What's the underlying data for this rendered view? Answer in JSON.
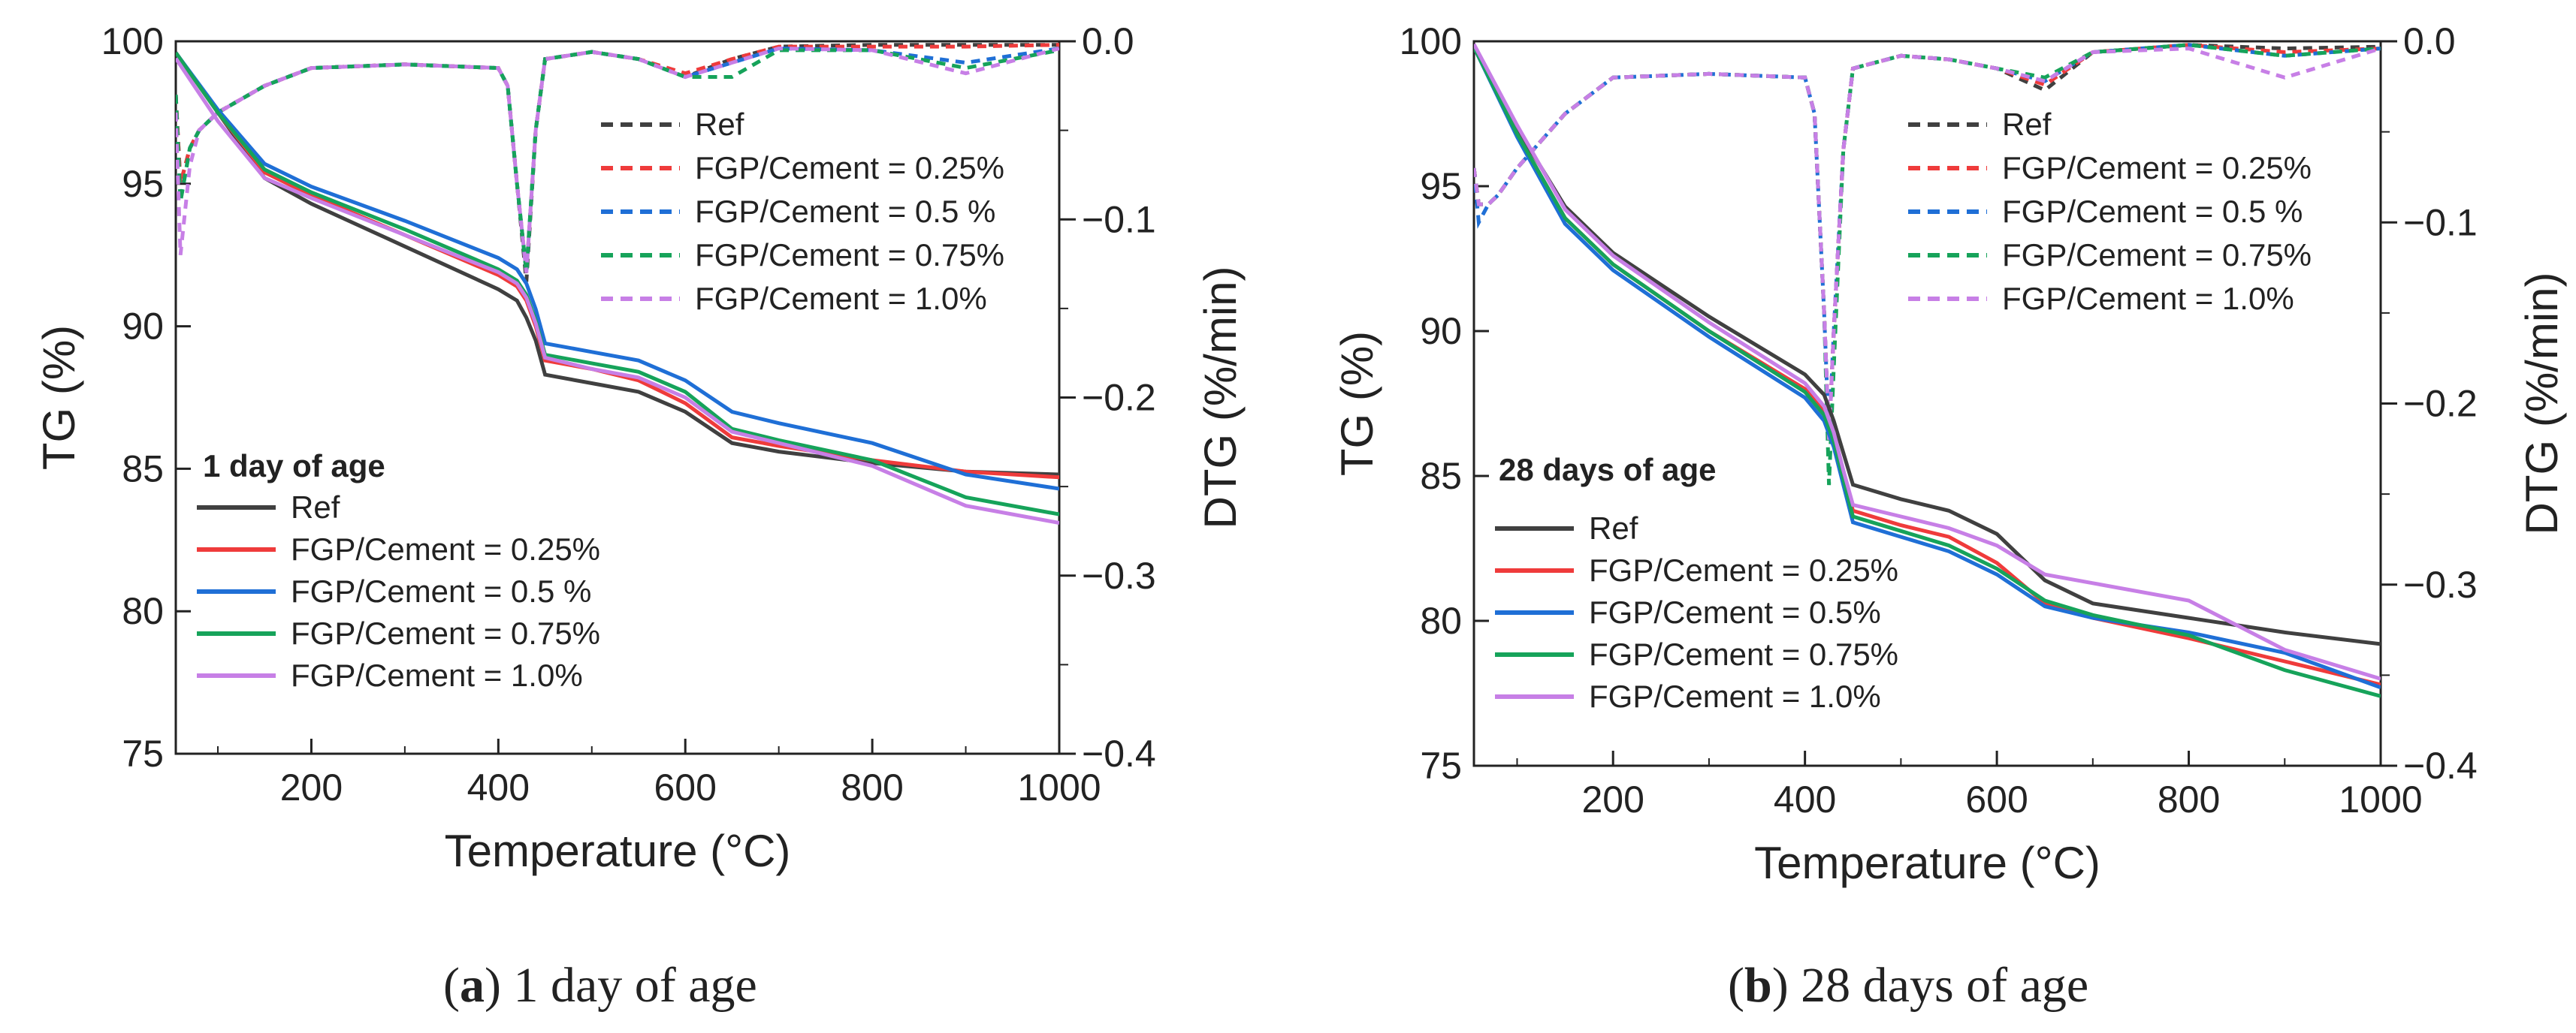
{
  "figure": {
    "captions": [
      {
        "prefix": "(",
        "letter": "a",
        "suffix": ") 1 day of age"
      },
      {
        "prefix": "(",
        "letter": "b",
        "suffix": ") 28 days of age"
      }
    ]
  },
  "colors": {
    "Ref": "#404040",
    "FGP025": "#ef3b3b",
    "FGP05": "#1f6fd6",
    "FGP075": "#16a35a",
    "FGP10": "#c77fe6"
  },
  "chart_data": [
    {
      "type": "line",
      "title": "1 day of age",
      "xlabel": "Temperature (°C)",
      "ylabel": "TG (%)",
      "y2label": "DTG (%/min)",
      "xlim": [
        55,
        1000
      ],
      "ylim": [
        75,
        100
      ],
      "y2lim": [
        -0.4,
        0.0
      ],
      "xticks": [
        "200",
        "400",
        "600",
        "800",
        "1000"
      ],
      "yticks": [
        "75",
        "80",
        "85",
        "90",
        "95",
        "100"
      ],
      "y2ticks": [
        "−0.4",
        "−0.3",
        "−0.2",
        "−0.1",
        "0.0"
      ],
      "condition_label": "1 day of age",
      "tg_legend": [
        "Ref",
        "FGP/Cement = 0.25%",
        "FGP/Cement  = 0.5 %",
        "FGP/Cement = 0.75%",
        "FGP/Cement = 1.0%"
      ],
      "dtg_legend": [
        "Ref",
        "FGP/Cement = 0.25%",
        "FGP/Cement  = 0.5 %",
        "FGP/Cement = 0.75%",
        "FGP/Cement = 1.0%"
      ],
      "series_keys": [
        "Ref",
        "FGP025",
        "FGP05",
        "FGP075",
        "FGP10"
      ],
      "tg_series": [
        {
          "name": "Ref",
          "x": [
            55,
            100,
            150,
            200,
            300,
            400,
            420,
            430,
            440,
            450,
            500,
            550,
            600,
            650,
            700,
            800,
            900,
            1000
          ],
          "values": [
            99.6,
            97.5,
            95.2,
            94.3,
            92.8,
            91.3,
            90.9,
            90.3,
            89.5,
            88.3,
            88.0,
            87.7,
            87.0,
            85.9,
            85.6,
            85.2,
            84.9,
            84.8
          ]
        },
        {
          "name": "FGP/Cement = 0.25%",
          "x": [
            55,
            100,
            150,
            200,
            300,
            400,
            420,
            430,
            440,
            450,
            500,
            550,
            600,
            650,
            700,
            800,
            900,
            1000
          ],
          "values": [
            99.6,
            97.5,
            95.4,
            94.6,
            93.2,
            91.8,
            91.4,
            90.9,
            90.0,
            88.8,
            88.5,
            88.1,
            87.3,
            86.1,
            85.8,
            85.3,
            84.9,
            84.7
          ]
        },
        {
          "name": "FGP/Cement  = 0.5 %",
          "x": [
            55,
            100,
            150,
            200,
            300,
            400,
            420,
            430,
            440,
            450,
            500,
            550,
            600,
            650,
            700,
            800,
            900,
            1000
          ],
          "values": [
            99.6,
            97.6,
            95.7,
            94.9,
            93.7,
            92.4,
            92.0,
            91.5,
            90.6,
            89.4,
            89.1,
            88.8,
            88.1,
            87.0,
            86.6,
            85.9,
            84.8,
            84.3
          ]
        },
        {
          "name": "FGP/Cement = 0.75%",
          "x": [
            55,
            100,
            150,
            200,
            300,
            400,
            420,
            430,
            440,
            450,
            500,
            550,
            600,
            650,
            700,
            800,
            900,
            1000
          ],
          "values": [
            99.6,
            97.5,
            95.5,
            94.7,
            93.4,
            92.0,
            91.6,
            91.1,
            90.2,
            89.0,
            88.7,
            88.4,
            87.7,
            86.4,
            86.0,
            85.3,
            84.0,
            83.4
          ]
        },
        {
          "name": "FGP/Cement = 1.0%",
          "x": [
            55,
            100,
            150,
            200,
            300,
            400,
            420,
            430,
            440,
            450,
            500,
            550,
            600,
            650,
            700,
            800,
            900,
            1000
          ],
          "values": [
            99.4,
            97.2,
            95.2,
            94.5,
            93.2,
            91.9,
            91.5,
            91.0,
            90.1,
            88.9,
            88.5,
            88.2,
            87.5,
            86.3,
            85.9,
            85.1,
            83.7,
            83.1
          ]
        }
      ],
      "dtg_series": [
        {
          "name": "Ref",
          "x": [
            55,
            60,
            70,
            80,
            100,
            150,
            200,
            300,
            400,
            410,
            420,
            430,
            440,
            450,
            500,
            550,
            600,
            650,
            700,
            800,
            900,
            1000
          ],
          "values": [
            -0.03,
            -0.08,
            -0.06,
            -0.05,
            -0.04,
            -0.025,
            -0.015,
            -0.013,
            -0.015,
            -0.025,
            -0.08,
            -0.135,
            -0.05,
            -0.01,
            -0.006,
            -0.01,
            -0.02,
            -0.01,
            -0.003,
            -0.002,
            -0.002,
            -0.002
          ]
        },
        {
          "name": "FGP/Cement = 0.25%",
          "x": [
            55,
            60,
            70,
            80,
            100,
            150,
            200,
            300,
            400,
            410,
            420,
            430,
            440,
            450,
            500,
            550,
            600,
            650,
            700,
            800,
            900,
            1000
          ],
          "values": [
            -0.03,
            -0.08,
            -0.06,
            -0.05,
            -0.04,
            -0.025,
            -0.015,
            -0.013,
            -0.015,
            -0.025,
            -0.08,
            -0.13,
            -0.05,
            -0.01,
            -0.006,
            -0.01,
            -0.018,
            -0.01,
            -0.003,
            -0.003,
            -0.003,
            -0.002
          ]
        },
        {
          "name": "FGP/Cement  = 0.5 %",
          "x": [
            55,
            60,
            70,
            80,
            100,
            150,
            200,
            300,
            400,
            410,
            420,
            430,
            440,
            450,
            500,
            550,
            600,
            650,
            700,
            800,
            900,
            1000
          ],
          "values": [
            -0.03,
            -0.09,
            -0.06,
            -0.05,
            -0.04,
            -0.025,
            -0.015,
            -0.013,
            -0.015,
            -0.025,
            -0.08,
            -0.13,
            -0.05,
            -0.01,
            -0.006,
            -0.01,
            -0.02,
            -0.012,
            -0.004,
            -0.005,
            -0.012,
            -0.004
          ]
        },
        {
          "name": "FGP/Cement = 0.75%",
          "x": [
            55,
            60,
            70,
            80,
            100,
            150,
            200,
            300,
            400,
            410,
            420,
            430,
            440,
            450,
            500,
            550,
            600,
            650,
            700,
            800,
            900,
            1000
          ],
          "values": [
            -0.03,
            -0.09,
            -0.06,
            -0.05,
            -0.04,
            -0.025,
            -0.015,
            -0.013,
            -0.015,
            -0.025,
            -0.08,
            -0.13,
            -0.05,
            -0.01,
            -0.006,
            -0.01,
            -0.02,
            -0.02,
            -0.005,
            -0.005,
            -0.015,
            -0.005
          ]
        },
        {
          "name": "FGP/Cement = 1.0%",
          "x": [
            55,
            60,
            70,
            80,
            100,
            150,
            200,
            300,
            400,
            410,
            420,
            430,
            440,
            450,
            500,
            550,
            600,
            650,
            700,
            800,
            900,
            1000
          ],
          "values": [
            -0.04,
            -0.12,
            -0.07,
            -0.05,
            -0.04,
            -0.025,
            -0.015,
            -0.013,
            -0.015,
            -0.025,
            -0.08,
            -0.13,
            -0.05,
            -0.01,
            -0.006,
            -0.01,
            -0.02,
            -0.012,
            -0.004,
            -0.005,
            -0.018,
            -0.004
          ]
        }
      ]
    },
    {
      "type": "line",
      "title": "28 days of age",
      "xlabel": "Temperature (°C)",
      "ylabel": "TG (%)",
      "y2label": "DTG (%/min)",
      "xlim": [
        55,
        1000
      ],
      "ylim": [
        75,
        100
      ],
      "y2lim": [
        -0.4,
        0.0
      ],
      "xticks": [
        "200",
        "400",
        "600",
        "800",
        "1000"
      ],
      "yticks": [
        "75",
        "80",
        "85",
        "90",
        "95",
        "100"
      ],
      "y2ticks": [
        "−0.4",
        "−0.3",
        "−0.2",
        "−0.1",
        "0.0"
      ],
      "condition_label": "28 days of age",
      "tg_legend": [
        "Ref",
        "FGP/Cement = 0.25%",
        "FGP/Cement = 0.5%",
        "FGP/Cement = 0.75%",
        "FGP/Cement = 1.0%"
      ],
      "dtg_legend": [
        "Ref",
        "FGP/Cement = 0.25%",
        "FGP/Cement  = 0.5 %",
        "FGP/Cement = 0.75%",
        "FGP/Cement = 1.0%"
      ],
      "series_keys": [
        "Ref",
        "FGP025",
        "FGP05",
        "FGP075",
        "FGP10"
      ],
      "tg_series": [
        {
          "name": "Ref",
          "x": [
            55,
            100,
            150,
            200,
            300,
            400,
            420,
            430,
            440,
            450,
            500,
            550,
            600,
            650,
            700,
            800,
            900,
            1000
          ],
          "values": [
            99.8,
            97.0,
            94.3,
            92.7,
            90.5,
            88.5,
            87.8,
            86.9,
            85.8,
            84.7,
            84.2,
            83.8,
            83.0,
            81.4,
            80.6,
            80.1,
            79.6,
            79.2
          ]
        },
        {
          "name": "FGP/Cement = 0.25%",
          "x": [
            55,
            100,
            150,
            200,
            300,
            400,
            420,
            430,
            440,
            450,
            500,
            550,
            600,
            650,
            700,
            800,
            900,
            1000
          ],
          "values": [
            99.8,
            96.8,
            93.9,
            92.3,
            90.0,
            88.0,
            87.2,
            86.3,
            85.1,
            83.8,
            83.3,
            82.9,
            82.0,
            80.6,
            80.1,
            79.4,
            78.6,
            77.8
          ]
        },
        {
          "name": "FGP/Cement = 0.5%",
          "x": [
            55,
            100,
            150,
            200,
            300,
            400,
            420,
            430,
            440,
            450,
            500,
            550,
            600,
            650,
            700,
            800,
            900,
            1000
          ],
          "values": [
            99.8,
            96.7,
            93.7,
            92.1,
            89.8,
            87.7,
            86.9,
            86.0,
            84.7,
            83.4,
            82.9,
            82.4,
            81.6,
            80.5,
            80.1,
            79.6,
            78.9,
            77.7
          ]
        },
        {
          "name": "FGP/Cement = 0.75%",
          "x": [
            55,
            100,
            150,
            200,
            300,
            400,
            420,
            430,
            440,
            450,
            500,
            550,
            600,
            650,
            700,
            800,
            900,
            1000
          ],
          "values": [
            99.8,
            96.8,
            93.9,
            92.3,
            90.0,
            87.9,
            87.1,
            86.2,
            84.9,
            83.6,
            83.1,
            82.6,
            81.8,
            80.7,
            80.2,
            79.5,
            78.3,
            77.4
          ]
        },
        {
          "name": "FGP/Cement = 1.0%",
          "x": [
            55,
            100,
            150,
            200,
            300,
            400,
            420,
            430,
            440,
            450,
            500,
            550,
            600,
            650,
            700,
            800,
            900,
            1000
          ],
          "values": [
            99.9,
            97.1,
            94.2,
            92.6,
            90.3,
            88.2,
            87.4,
            86.5,
            85.2,
            84.0,
            83.6,
            83.2,
            82.6,
            81.6,
            81.3,
            80.7,
            79.0,
            78.0
          ]
        }
      ],
      "dtg_series": [
        {
          "name": "Ref",
          "x": [
            55,
            60,
            70,
            80,
            100,
            150,
            200,
            300,
            400,
            410,
            420,
            425,
            430,
            440,
            450,
            500,
            550,
            600,
            650,
            700,
            800,
            900,
            1000
          ],
          "values": [
            -0.07,
            -0.09,
            -0.09,
            -0.085,
            -0.07,
            -0.04,
            -0.02,
            -0.018,
            -0.02,
            -0.04,
            -0.15,
            -0.22,
            -0.16,
            -0.06,
            -0.015,
            -0.008,
            -0.01,
            -0.015,
            -0.027,
            -0.006,
            -0.002,
            -0.004,
            -0.003
          ]
        },
        {
          "name": "FGP/Cement = 0.25%",
          "x": [
            55,
            60,
            70,
            80,
            100,
            150,
            200,
            300,
            400,
            410,
            420,
            425,
            430,
            440,
            450,
            500,
            550,
            600,
            650,
            700,
            800,
            900,
            1000
          ],
          "values": [
            -0.07,
            -0.09,
            -0.09,
            -0.085,
            -0.07,
            -0.04,
            -0.02,
            -0.018,
            -0.02,
            -0.04,
            -0.15,
            -0.22,
            -0.16,
            -0.06,
            -0.015,
            -0.008,
            -0.01,
            -0.015,
            -0.024,
            -0.006,
            -0.002,
            -0.006,
            -0.004
          ]
        },
        {
          "name": "FGP/Cement  = 0.5 %",
          "x": [
            55,
            60,
            70,
            80,
            100,
            150,
            200,
            300,
            400,
            410,
            420,
            425,
            430,
            440,
            450,
            500,
            550,
            600,
            650,
            700,
            800,
            900,
            1000
          ],
          "values": [
            -0.07,
            -0.1,
            -0.09,
            -0.085,
            -0.07,
            -0.04,
            -0.02,
            -0.018,
            -0.02,
            -0.04,
            -0.15,
            -0.22,
            -0.16,
            -0.06,
            -0.015,
            -0.008,
            -0.01,
            -0.015,
            -0.022,
            -0.006,
            -0.002,
            -0.008,
            -0.004
          ]
        },
        {
          "name": "FGP/Cement = 0.75%",
          "x": [
            55,
            60,
            70,
            80,
            100,
            150,
            200,
            300,
            400,
            410,
            420,
            425,
            430,
            440,
            450,
            500,
            550,
            600,
            650,
            700,
            800,
            900,
            1000
          ],
          "values": [
            -0.07,
            -0.09,
            -0.09,
            -0.085,
            -0.07,
            -0.04,
            -0.02,
            -0.018,
            -0.02,
            -0.04,
            -0.15,
            -0.245,
            -0.18,
            -0.06,
            -0.015,
            -0.008,
            -0.01,
            -0.015,
            -0.02,
            -0.006,
            -0.002,
            -0.008,
            -0.004
          ]
        },
        {
          "name": "FGP/Cement = 1.0%",
          "x": [
            55,
            60,
            70,
            80,
            100,
            150,
            200,
            300,
            400,
            410,
            420,
            425,
            430,
            440,
            450,
            500,
            550,
            600,
            650,
            700,
            800,
            900,
            1000
          ],
          "values": [
            -0.07,
            -0.09,
            -0.09,
            -0.085,
            -0.07,
            -0.04,
            -0.02,
            -0.018,
            -0.02,
            -0.04,
            -0.15,
            -0.22,
            -0.16,
            -0.06,
            -0.015,
            -0.008,
            -0.01,
            -0.015,
            -0.022,
            -0.006,
            -0.004,
            -0.02,
            -0.004
          ]
        }
      ]
    }
  ]
}
